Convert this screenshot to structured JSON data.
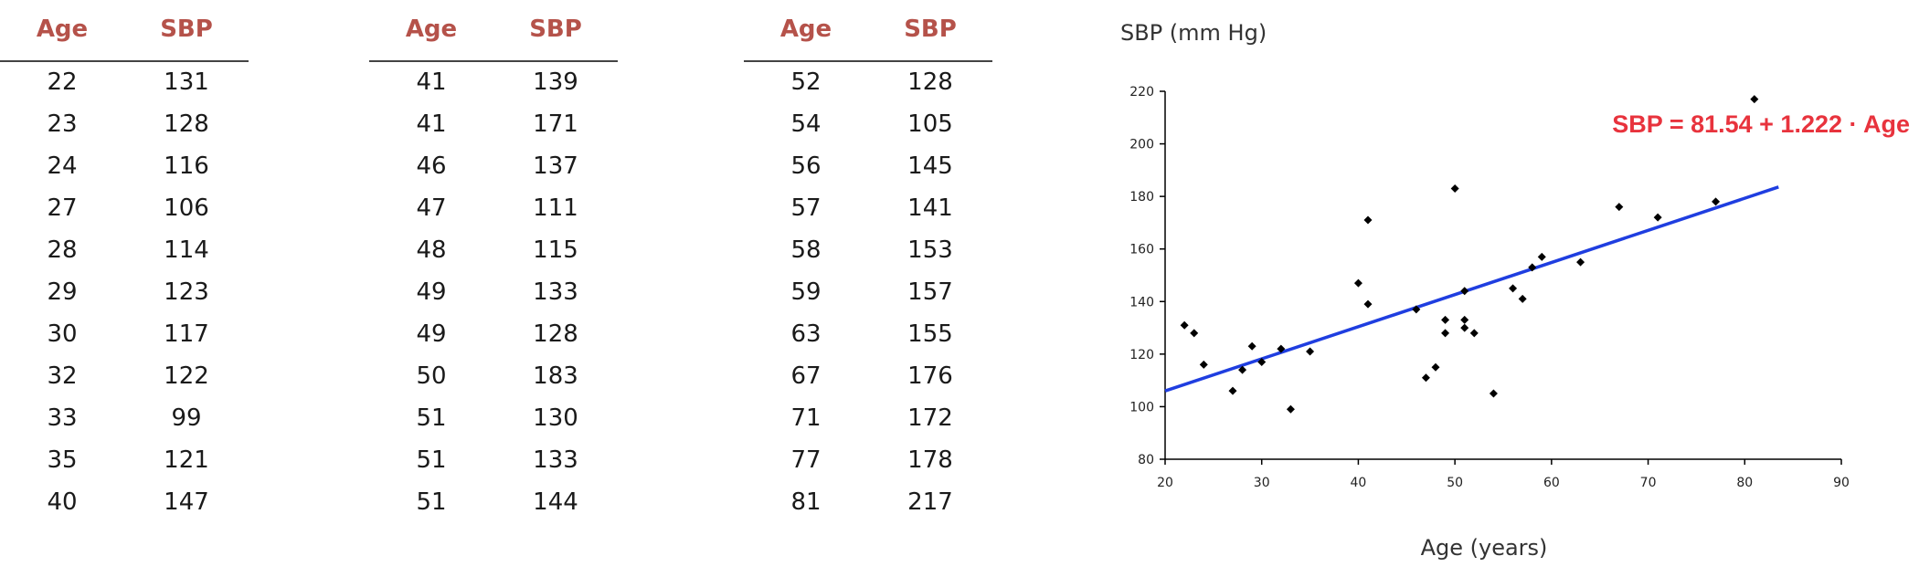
{
  "tables": [
    {
      "headers": [
        "Age",
        "SBP"
      ],
      "rows": [
        [
          "22",
          "131"
        ],
        [
          "23",
          "128"
        ],
        [
          "24",
          "116"
        ],
        [
          "27",
          "106"
        ],
        [
          "28",
          "114"
        ],
        [
          "29",
          "123"
        ],
        [
          "30",
          "117"
        ],
        [
          "32",
          "122"
        ],
        [
          "33",
          "99"
        ],
        [
          "35",
          "121"
        ],
        [
          "40",
          "147"
        ]
      ]
    },
    {
      "headers": [
        "Age",
        "SBP"
      ],
      "rows": [
        [
          "41",
          "139"
        ],
        [
          "41",
          "171"
        ],
        [
          "46",
          "137"
        ],
        [
          "47",
          "111"
        ],
        [
          "48",
          "115"
        ],
        [
          "49",
          "133"
        ],
        [
          "49",
          "128"
        ],
        [
          "50",
          "183"
        ],
        [
          "51",
          "130"
        ],
        [
          "51",
          "133"
        ],
        [
          "51",
          "144"
        ]
      ]
    },
    {
      "headers": [
        "Age",
        "SBP"
      ],
      "rows": [
        [
          "52",
          "128"
        ],
        [
          "54",
          "105"
        ],
        [
          "56",
          "145"
        ],
        [
          "57",
          "141"
        ],
        [
          "58",
          "153"
        ],
        [
          "59",
          "157"
        ],
        [
          "63",
          "155"
        ],
        [
          "67",
          "176"
        ],
        [
          "71",
          "172"
        ],
        [
          "77",
          "178"
        ],
        [
          "81",
          "217"
        ]
      ]
    }
  ],
  "chart_data": {
    "type": "scatter",
    "ylabel": "SBP (mm Hg)",
    "xlabel": "Age (years)",
    "xlim": [
      20,
      90
    ],
    "ylim": [
      80,
      220
    ],
    "x_ticks": [
      "20",
      "30",
      "40",
      "50",
      "60",
      "70",
      "80",
      "90"
    ],
    "y_ticks": [
      "80",
      "100",
      "120",
      "140",
      "160",
      "180",
      "200",
      "220"
    ],
    "points": [
      [
        22,
        131
      ],
      [
        23,
        128
      ],
      [
        24,
        116
      ],
      [
        27,
        106
      ],
      [
        28,
        114
      ],
      [
        29,
        123
      ],
      [
        30,
        117
      ],
      [
        32,
        122
      ],
      [
        33,
        99
      ],
      [
        35,
        121
      ],
      [
        40,
        147
      ],
      [
        41,
        139
      ],
      [
        41,
        171
      ],
      [
        46,
        137
      ],
      [
        47,
        111
      ],
      [
        48,
        115
      ],
      [
        49,
        133
      ],
      [
        49,
        128
      ],
      [
        50,
        183
      ],
      [
        51,
        130
      ],
      [
        51,
        133
      ],
      [
        51,
        144
      ],
      [
        52,
        128
      ],
      [
        54,
        105
      ],
      [
        56,
        145
      ],
      [
        57,
        141
      ],
      [
        58,
        153
      ],
      [
        59,
        157
      ],
      [
        63,
        155
      ],
      [
        67,
        176
      ],
      [
        71,
        172
      ],
      [
        77,
        178
      ],
      [
        81,
        217
      ]
    ],
    "regression": {
      "intercept": 81.54,
      "slope": 1.222,
      "x_range": [
        20,
        83.5
      ]
    },
    "equation": "SBP = 81.54 + 1.222 · Age",
    "colors": {
      "points": "#000000",
      "line": "#1f3ee0",
      "equation": "#e8333d",
      "header": "#b5524a"
    }
  }
}
